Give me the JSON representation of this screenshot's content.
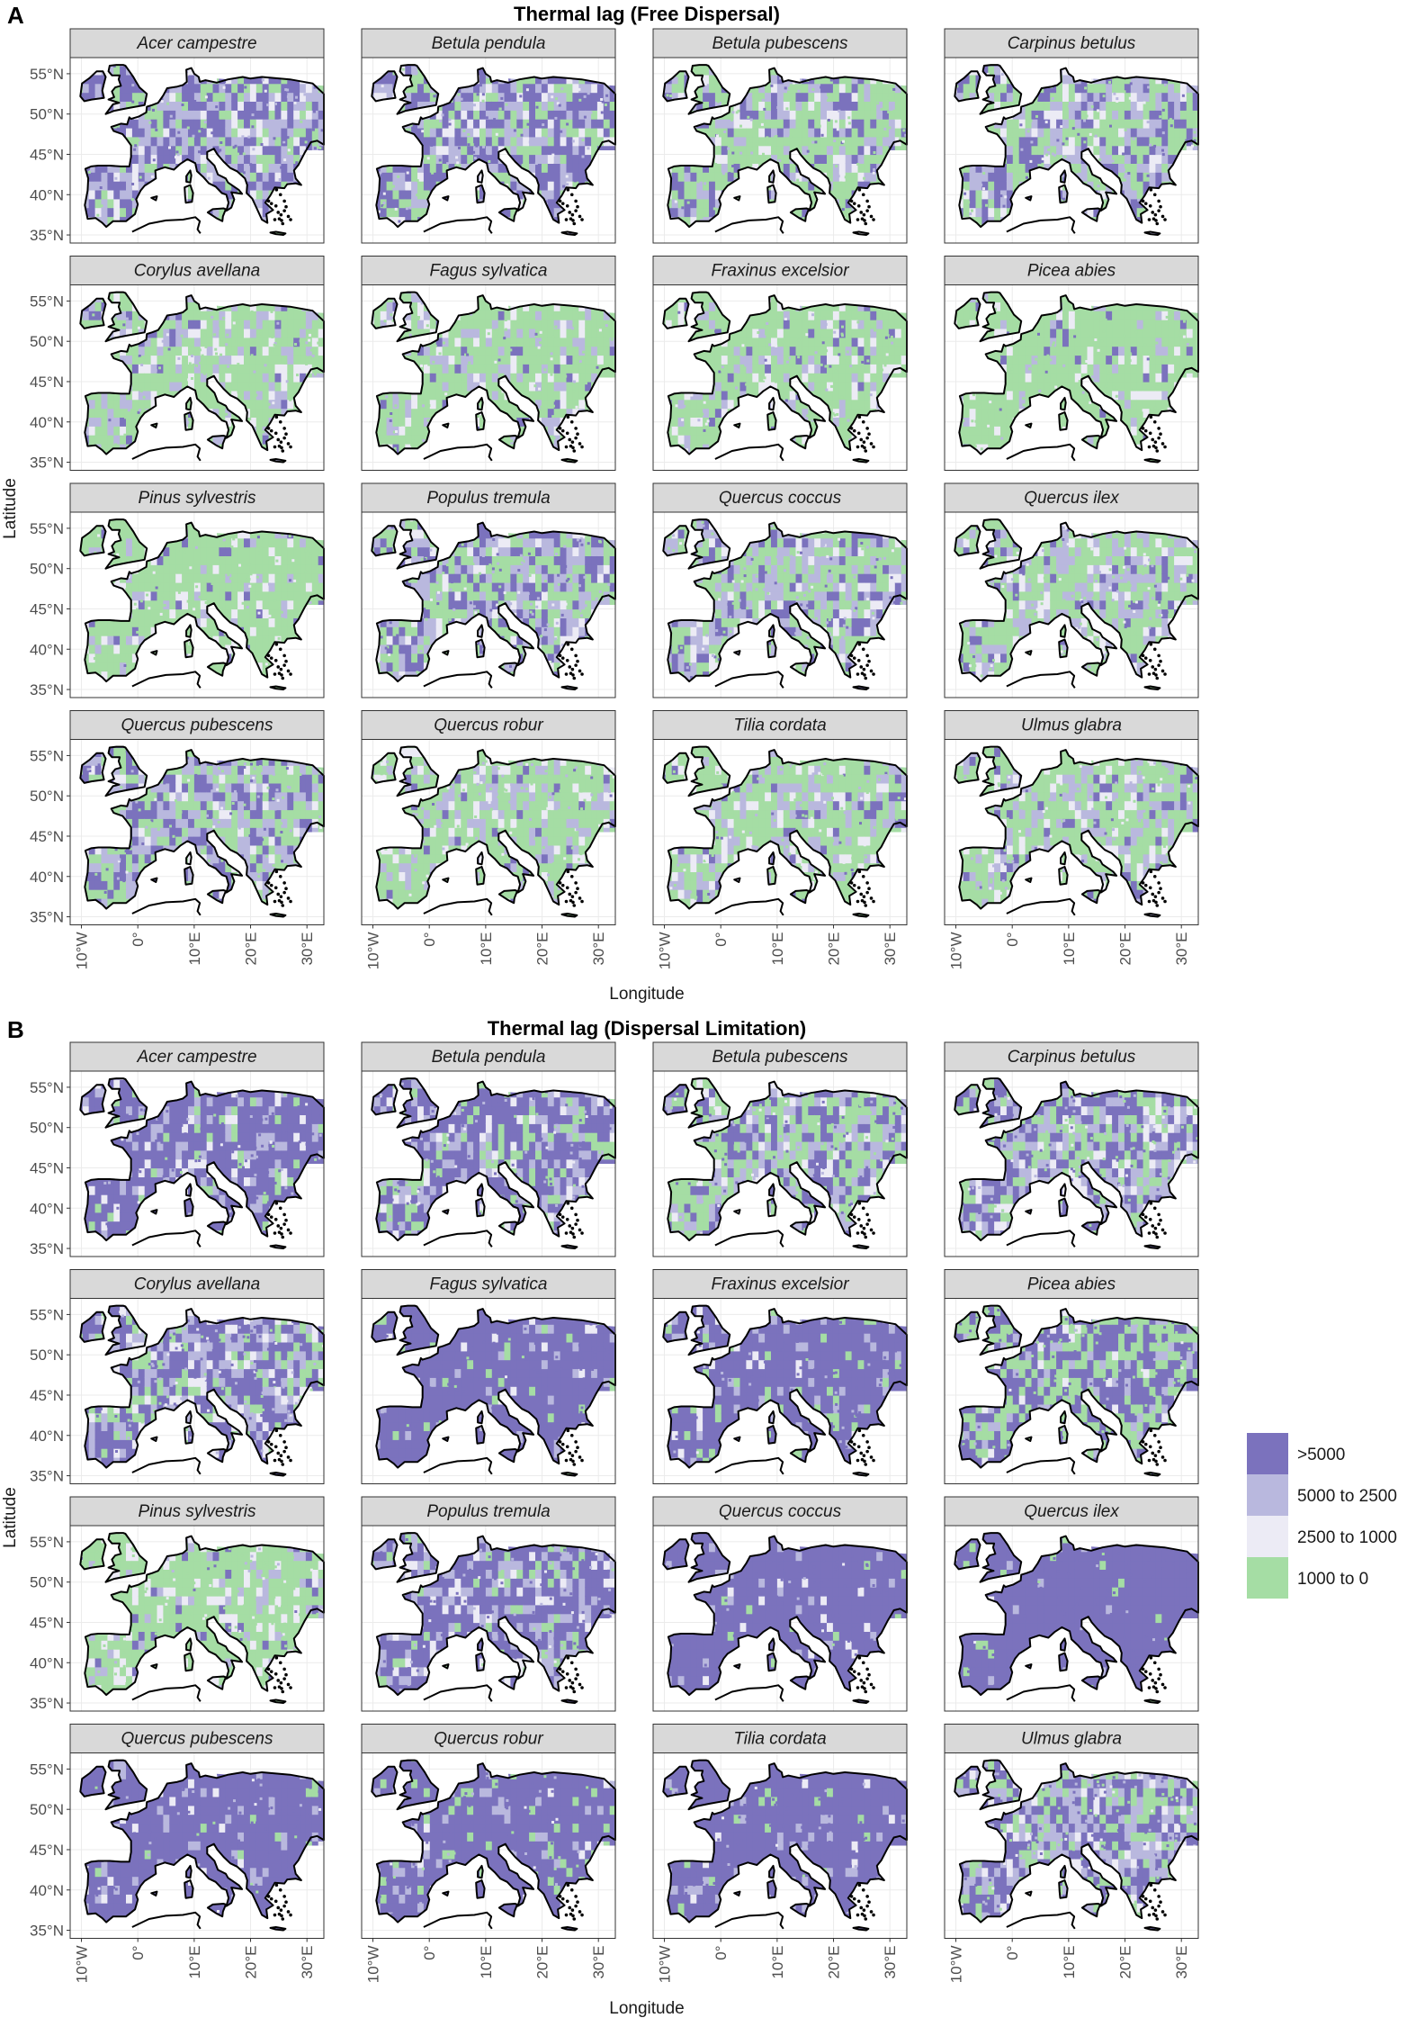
{
  "panels": [
    {
      "letter": "A",
      "title": "Thermal lag (Free Dispersal)",
      "species": [
        {
          "name": "Acer campestre",
          "mix": [
            0.42,
            0.26,
            0.12,
            0.2
          ]
        },
        {
          "name": "Betula pendula",
          "mix": [
            0.38,
            0.26,
            0.1,
            0.26
          ]
        },
        {
          "name": "Betula pubescens",
          "mix": [
            0.18,
            0.2,
            0.12,
            0.5
          ]
        },
        {
          "name": "Carpinus betulus",
          "mix": [
            0.22,
            0.25,
            0.12,
            0.41
          ]
        },
        {
          "name": "Corylus avellana",
          "mix": [
            0.05,
            0.2,
            0.1,
            0.65
          ]
        },
        {
          "name": "Fagus sylvatica",
          "mix": [
            0.05,
            0.18,
            0.1,
            0.67
          ]
        },
        {
          "name": "Fraxinus excelsior",
          "mix": [
            0.06,
            0.14,
            0.1,
            0.7
          ]
        },
        {
          "name": "Picea abies",
          "mix": [
            0.04,
            0.06,
            0.1,
            0.8
          ]
        },
        {
          "name": "Pinus sylvestris",
          "mix": [
            0.04,
            0.08,
            0.12,
            0.76
          ]
        },
        {
          "name": "Populus tremula",
          "mix": [
            0.25,
            0.3,
            0.12,
            0.33
          ]
        },
        {
          "name": "Quercus coccus",
          "mix": [
            0.22,
            0.28,
            0.1,
            0.4
          ]
        },
        {
          "name": "Quercus ilex",
          "mix": [
            0.1,
            0.26,
            0.12,
            0.52
          ]
        },
        {
          "name": "Quercus pubescens",
          "mix": [
            0.25,
            0.3,
            0.1,
            0.35
          ]
        },
        {
          "name": "Quercus robur",
          "mix": [
            0.05,
            0.22,
            0.1,
            0.63
          ]
        },
        {
          "name": "Tilia cordata",
          "mix": [
            0.08,
            0.2,
            0.12,
            0.6
          ]
        },
        {
          "name": "Ulmus glabra",
          "mix": [
            0.1,
            0.22,
            0.12,
            0.56
          ]
        }
      ]
    },
    {
      "letter": "B",
      "title": "Thermal lag (Dispersal Limitation)",
      "species": [
        {
          "name": "Acer campestre",
          "mix": [
            0.72,
            0.14,
            0.08,
            0.06
          ]
        },
        {
          "name": "Betula pendula",
          "mix": [
            0.55,
            0.22,
            0.08,
            0.15
          ]
        },
        {
          "name": "Betula pubescens",
          "mix": [
            0.3,
            0.22,
            0.1,
            0.38
          ]
        },
        {
          "name": "Carpinus betulus",
          "mix": [
            0.35,
            0.3,
            0.12,
            0.23
          ]
        },
        {
          "name": "Corylus avellana",
          "mix": [
            0.45,
            0.25,
            0.12,
            0.18
          ]
        },
        {
          "name": "Fagus sylvatica",
          "mix": [
            0.85,
            0.08,
            0.02,
            0.05
          ]
        },
        {
          "name": "Fraxinus excelsior",
          "mix": [
            0.82,
            0.08,
            0.03,
            0.07
          ]
        },
        {
          "name": "Picea abies",
          "mix": [
            0.45,
            0.1,
            0.05,
            0.4
          ]
        },
        {
          "name": "Pinus sylvestris",
          "mix": [
            0.06,
            0.08,
            0.14,
            0.72
          ]
        },
        {
          "name": "Populus tremula",
          "mix": [
            0.6,
            0.22,
            0.08,
            0.1
          ]
        },
        {
          "name": "Quercus coccus",
          "mix": [
            0.92,
            0.04,
            0.02,
            0.02
          ]
        },
        {
          "name": "Quercus ilex",
          "mix": [
            0.94,
            0.03,
            0.01,
            0.02
          ]
        },
        {
          "name": "Quercus pubescens",
          "mix": [
            0.86,
            0.08,
            0.03,
            0.03
          ]
        },
        {
          "name": "Quercus robur",
          "mix": [
            0.8,
            0.08,
            0.02,
            0.1
          ]
        },
        {
          "name": "Tilia cordata",
          "mix": [
            0.85,
            0.08,
            0.03,
            0.04
          ]
        },
        {
          "name": "Ulmus glabra",
          "mix": [
            0.4,
            0.28,
            0.1,
            0.22
          ]
        }
      ]
    }
  ],
  "axes": {
    "xlabel": "Longitude",
    "ylabel": "Latitude",
    "lon_ticks": [
      "10°W",
      "0°",
      "10°E",
      "20°E",
      "30°E"
    ],
    "lat_ticks": [
      "55°N",
      "50°N",
      "45°N",
      "40°N",
      "35°N"
    ],
    "lon_range": [
      -12,
      33
    ],
    "lat_range": [
      34,
      57
    ]
  },
  "legend": {
    "items": [
      {
        "label": ">5000",
        "color": "#7b72bd"
      },
      {
        "label": "5000 to 2500",
        "color": "#b9b8de"
      },
      {
        "label": "2500 to 1000",
        "color": "#ecebf5"
      },
      {
        "label": "1000 to 0",
        "color": "#a5dda4"
      }
    ]
  }
}
